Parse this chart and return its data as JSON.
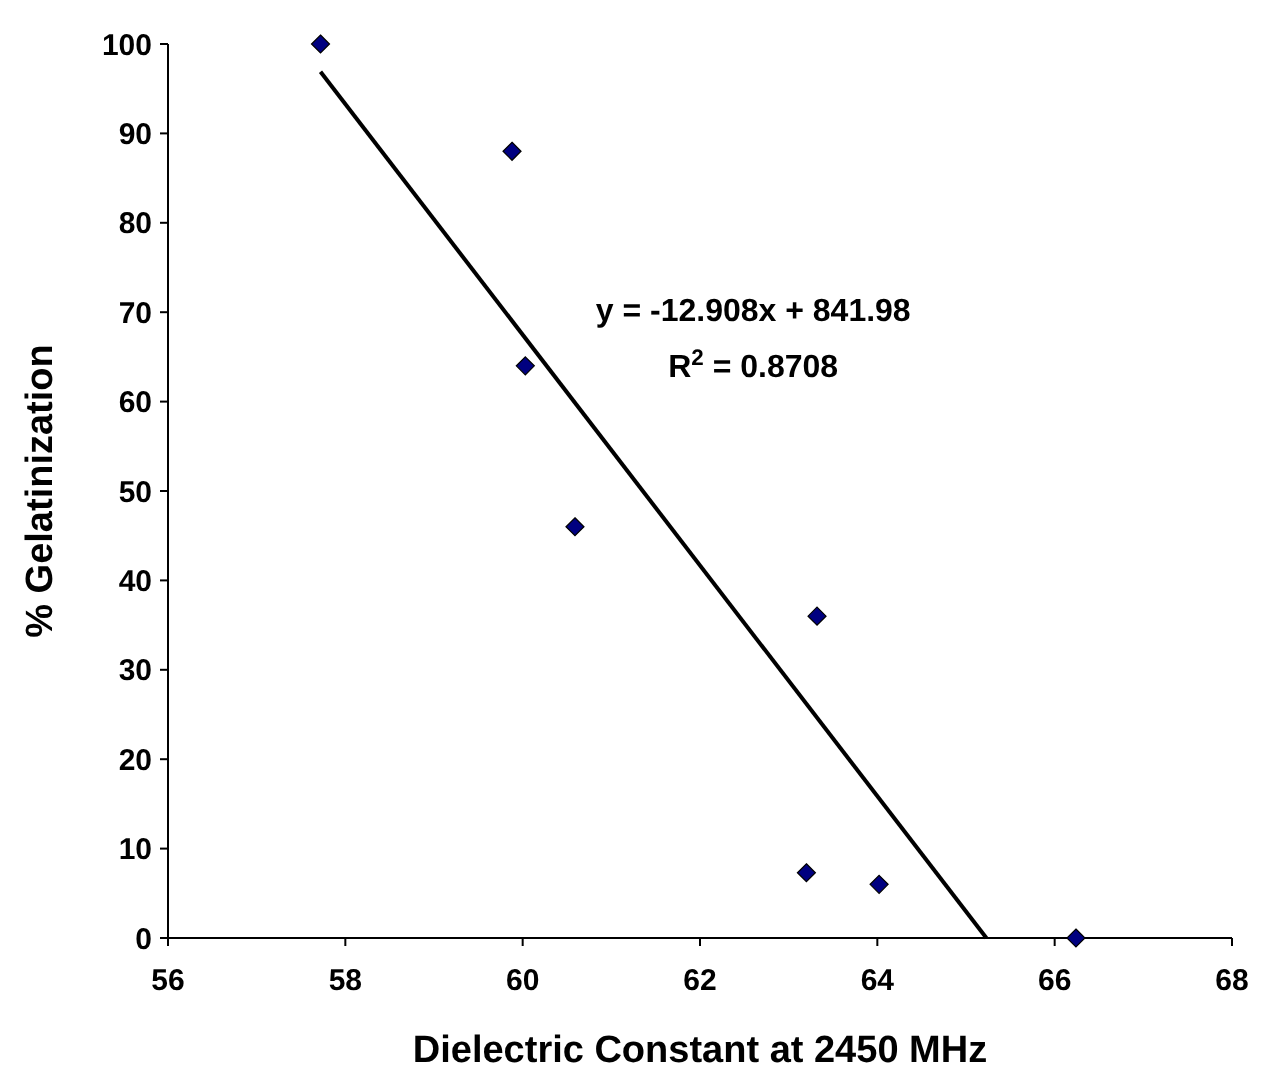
{
  "chart_data": {
    "type": "scatter",
    "xlabel": "Dielectric Constant at 2450 MHz",
    "ylabel": "% Gelatinization",
    "xlim": [
      56,
      68
    ],
    "xticks": [
      56,
      58,
      60,
      62,
      64,
      66,
      68
    ],
    "ylim": [
      0,
      100
    ],
    "yticks": [
      0,
      10,
      20,
      30,
      40,
      50,
      60,
      70,
      80,
      90,
      100
    ],
    "grid": false,
    "marker": "diamond",
    "series": [
      {
        "color": "#000080",
        "x": [
          57.72,
          59.88,
          60.03,
          60.59,
          63.32,
          63.2,
          64.02,
          66.24
        ],
        "values": [
          100,
          88,
          64,
          46,
          36,
          7.3,
          6,
          0
        ]
      },
      {
        "type": "line",
        "color": "#000000",
        "x": [
          57.72,
          65.23
        ],
        "values": [
          96.9,
          0
        ],
        "marker": "none",
        "line_style": "solid"
      }
    ],
    "annotations": [
      "y = -12.908x + 841.98",
      "R$^{2}$ = 0.8708"
    ]
  }
}
